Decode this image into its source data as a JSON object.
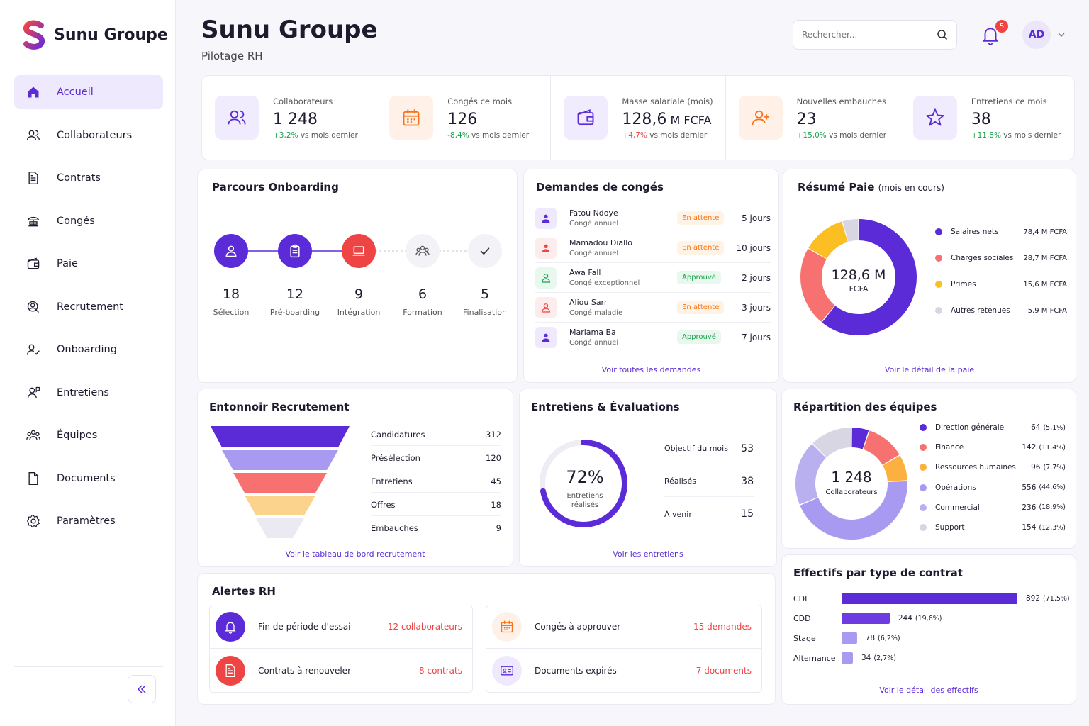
{
  "app": {
    "name": "Sunu Groupe",
    "page_title": "Sunu Groupe",
    "page_subtitle": "Pilotage RH"
  },
  "sidebar": {
    "items": [
      {
        "label": "Accueil",
        "icon": "home-icon",
        "active": true
      },
      {
        "label": "Collaborateurs",
        "icon": "users-icon"
      },
      {
        "label": "Contrats",
        "icon": "document-icon"
      },
      {
        "label": "Congés",
        "icon": "beach-icon"
      },
      {
        "label": "Paie",
        "icon": "wallet-icon"
      },
      {
        "label": "Recrutement",
        "icon": "recruit-icon"
      },
      {
        "label": "Onboarding",
        "icon": "onboarding-icon"
      },
      {
        "label": "Entretiens",
        "icon": "interview-icon"
      },
      {
        "label": "Équipes",
        "icon": "team-icon"
      },
      {
        "label": "Documents",
        "icon": "file-icon"
      },
      {
        "label": "Paramètres",
        "icon": "gear-icon"
      }
    ]
  },
  "header": {
    "search_placeholder": "Rechercher...",
    "notifications": "5",
    "avatar": "AD"
  },
  "kpis": [
    {
      "label": "Collaborateurs",
      "value": "1 248",
      "unit": "",
      "delta": "+3,2%",
      "delta_text": " vs mois dernier",
      "trend": "up",
      "color": "#5b2bd8",
      "bg": "#f1ecfd",
      "icon": "users-icon"
    },
    {
      "label": "Congés ce mois",
      "value": "126",
      "unit": "",
      "delta": "-8,4%",
      "delta_text": " vs mois dernier",
      "trend": "up",
      "color": "#f97316",
      "bg": "#fff1e8",
      "icon": "calendar-icon"
    },
    {
      "label": "Masse salariale (mois)",
      "value": "128,6",
      "unit": " M FCFA",
      "delta": "+4,7%",
      "delta_text": " vs mois dernier",
      "trend": "down",
      "color": "#5b2bd8",
      "bg": "#f1ecfd",
      "icon": "wallet-icon"
    },
    {
      "label": "Nouvelles embauches",
      "value": "23",
      "unit": "",
      "delta": "+15,0%",
      "delta_text": " vs mois dernier",
      "trend": "up",
      "color": "#f97316",
      "bg": "#fff1e8",
      "icon": "user-plus-icon"
    },
    {
      "label": "Entretiens ce mois",
      "value": "38",
      "unit": "",
      "delta": "+11,8%",
      "delta_text": " vs mois dernier",
      "trend": "up",
      "color": "#5b2bd8",
      "bg": "#f1ecfd",
      "icon": "star-icon"
    }
  ],
  "onboarding": {
    "title": "Parcours Onboarding",
    "steps": [
      {
        "num": "18",
        "label": "Sélection"
      },
      {
        "num": "12",
        "label": "Pré-boarding"
      },
      {
        "num": "9",
        "label": "Intégration"
      },
      {
        "num": "6",
        "label": "Formation"
      },
      {
        "num": "5",
        "label": "Finalisation"
      }
    ]
  },
  "leaves": {
    "title": "Demandes de congés",
    "link": "Voir toutes les demandes",
    "rows": [
      {
        "name": "Fatou Ndoye",
        "type": "Congé annuel",
        "status": "En attente",
        "days": "5 jours",
        "color": "#5b2bd8",
        "bg": "#efe9fd"
      },
      {
        "name": "Mamadou Diallo",
        "type": "Congé annuel",
        "status": "En attente",
        "days": "10 jours",
        "color": "#ef4444",
        "bg": "#fdecec"
      },
      {
        "name": "Awa Fall",
        "type": "Congé exceptionnel",
        "status": "Approuvé",
        "days": "2 jours",
        "color": "#16a34a",
        "bg": "#e8f8ee"
      },
      {
        "name": "Aliou Sarr",
        "type": "Congé maladie",
        "status": "En attente",
        "days": "3 jours",
        "color": "#ef4444",
        "bg": "#fdecec"
      },
      {
        "name": "Mariama Ba",
        "type": "Congé annuel",
        "status": "Approuvé",
        "days": "7 jours",
        "color": "#5b2bd8",
        "bg": "#efe9fd"
      }
    ]
  },
  "payroll": {
    "title": "Résumé Paie",
    "title_suffix": "(mois en cours)",
    "center_value": "128,6 M",
    "center_unit": "FCFA",
    "link": "Voir le détail de la paie",
    "items": [
      {
        "label": "Salaires nets",
        "value": "78,4 M FCFA",
        "amount": 78.4,
        "color": "#5b2bd8"
      },
      {
        "label": "Charges sociales",
        "value": "28,7 M FCFA",
        "amount": 28.7,
        "color": "#f87171"
      },
      {
        "label": "Primes",
        "value": "15,6 M FCFA",
        "amount": 15.6,
        "color": "#fbbf24"
      },
      {
        "label": "Autres retenues",
        "value": "5,9 M FCFA",
        "amount": 5.9,
        "color": "#d9d6e4"
      }
    ]
  },
  "funnel": {
    "title": "Entonnoir Recrutement",
    "link": "Voir le tableau de bord recrutement",
    "stages": [
      {
        "label": "Candidatures",
        "value": "312",
        "color": "#5b2bd8"
      },
      {
        "label": "Présélection",
        "value": "120",
        "color": "#a89af0"
      },
      {
        "label": "Entretiens",
        "value": "45",
        "color": "#f87171"
      },
      {
        "label": "Offres",
        "value": "18",
        "color": "#fcd38d"
      },
      {
        "label": "Embauches",
        "value": "9",
        "color": "#ebe9f2"
      }
    ]
  },
  "evaluations": {
    "title": "Entretiens & Évaluations",
    "percent": "72%",
    "percent_value": 72,
    "caption": "Entretiens réalisés",
    "link": "Voir les entretiens",
    "rows": [
      {
        "label": "Objectif du mois",
        "value": "53"
      },
      {
        "label": "Réalisés",
        "value": "38"
      },
      {
        "label": "À venir",
        "value": "15"
      }
    ]
  },
  "teams": {
    "title": "Répartition des équipes",
    "center_value": "1 248",
    "center_label": "Collaborateurs",
    "items": [
      {
        "label": "Direction générale",
        "value": "64",
        "pct": "(5,1%)",
        "count": 64,
        "color": "#5b2bd8"
      },
      {
        "label": "Finance",
        "value": "142",
        "pct": "(11,4%)",
        "count": 142,
        "color": "#f87171"
      },
      {
        "label": "Ressources humaines",
        "value": "96",
        "pct": "(7,7%)",
        "count": 96,
        "color": "#fbb040"
      },
      {
        "label": "Opérations",
        "value": "556",
        "pct": "(44,6%)",
        "count": 556,
        "color": "#a89af0"
      },
      {
        "label": "Commercial",
        "value": "236",
        "pct": "(18,9%)",
        "count": 236,
        "color": "#b9b0f0"
      },
      {
        "label": "Support",
        "value": "154",
        "pct": "(12,3%)",
        "count": 154,
        "color": "#d9d6e4"
      }
    ]
  },
  "alerts": {
    "title": "Alertes RH",
    "items": [
      {
        "label": "Fin de période d'essai",
        "value": "12 collaborateurs",
        "icon": "bell-icon",
        "color": "#fff",
        "bg": "#5b2bd8"
      },
      {
        "label": "Congés à approuver",
        "value": "15 demandes",
        "icon": "calendar-icon",
        "color": "#f97316",
        "bg": "#fff1e8"
      },
      {
        "label": "Contrats à renouveler",
        "value": "8 contrats",
        "icon": "document-icon",
        "color": "#fff",
        "bg": "#ef4444"
      },
      {
        "label": "Documents expirés",
        "value": "7 documents",
        "icon": "id-card-icon",
        "color": "#5b2bd8",
        "bg": "#efe9fd"
      }
    ]
  },
  "contracts": {
    "title": "Effectifs par type de contrat",
    "link": "Voir le détail des effectifs",
    "rows": [
      {
        "label": "CDI",
        "value": "892",
        "pct": "(71,5%)",
        "count": 892,
        "color": "#5b2bd8"
      },
      {
        "label": "CDD",
        "value": "244",
        "pct": "(19,6%)",
        "count": 244,
        "color": "#6d3ce0"
      },
      {
        "label": "Stage",
        "value": "78",
        "pct": "(6,2%)",
        "count": 78,
        "color": "#a89af0"
      },
      {
        "label": "Alternance",
        "value": "34",
        "pct": "(2,7%)",
        "count": 34,
        "color": "#a89af0"
      }
    ]
  }
}
